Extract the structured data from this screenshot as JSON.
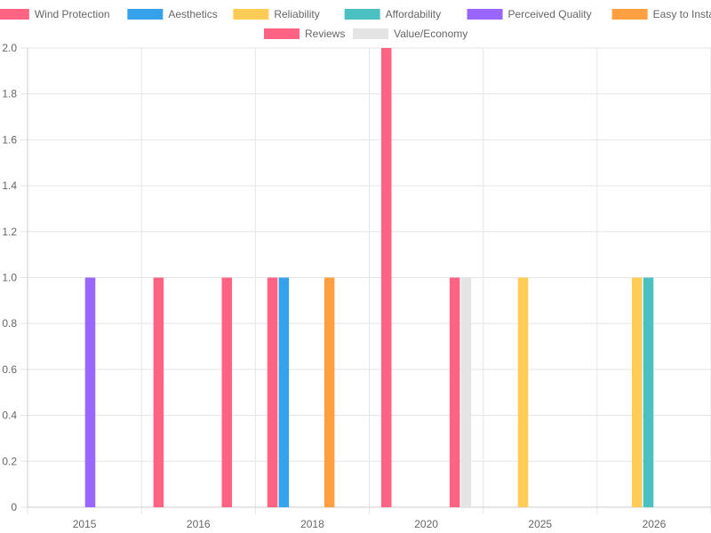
{
  "chart_data": {
    "type": "bar",
    "title": "",
    "xlabel": "",
    "ylabel": "",
    "categories": [
      "2015",
      "2016",
      "2018",
      "2020",
      "2025",
      "2026"
    ],
    "ylim": [
      0,
      2
    ],
    "yticks": [
      "0",
      "0.2",
      "0.4",
      "0.6",
      "0.8",
      "1.0",
      "1.2",
      "1.4",
      "1.6",
      "1.8",
      "2.0"
    ],
    "grid": true,
    "legend_position": "top",
    "series": [
      {
        "name": "Wind Protection",
        "color": "#ff6384",
        "values": [
          0,
          1,
          1,
          2,
          0,
          0
        ]
      },
      {
        "name": "Aesthetics",
        "color": "#36a2eb",
        "values": [
          0,
          0,
          1,
          0,
          0,
          0
        ]
      },
      {
        "name": "Reliability",
        "color": "#ffcd56",
        "values": [
          0,
          0,
          0,
          0,
          1,
          1
        ]
      },
      {
        "name": "Affordability",
        "color": "#4bc0c0",
        "values": [
          0,
          0,
          0,
          0,
          0,
          1
        ]
      },
      {
        "name": "Perceived Quality",
        "color": "#9966ff",
        "values": [
          1,
          0,
          0,
          0,
          0,
          0
        ]
      },
      {
        "name": "Easy to Install",
        "color": "#ff9f40",
        "values": [
          0,
          0,
          1,
          0,
          0,
          0
        ]
      },
      {
        "name": "Reviews",
        "color": "#ff6384",
        "values": [
          0,
          1,
          0,
          1,
          0,
          0
        ]
      },
      {
        "name": "Value/Economy",
        "color": "#e4e4e4",
        "values": [
          0,
          0,
          0,
          1,
          0,
          0
        ]
      }
    ]
  }
}
